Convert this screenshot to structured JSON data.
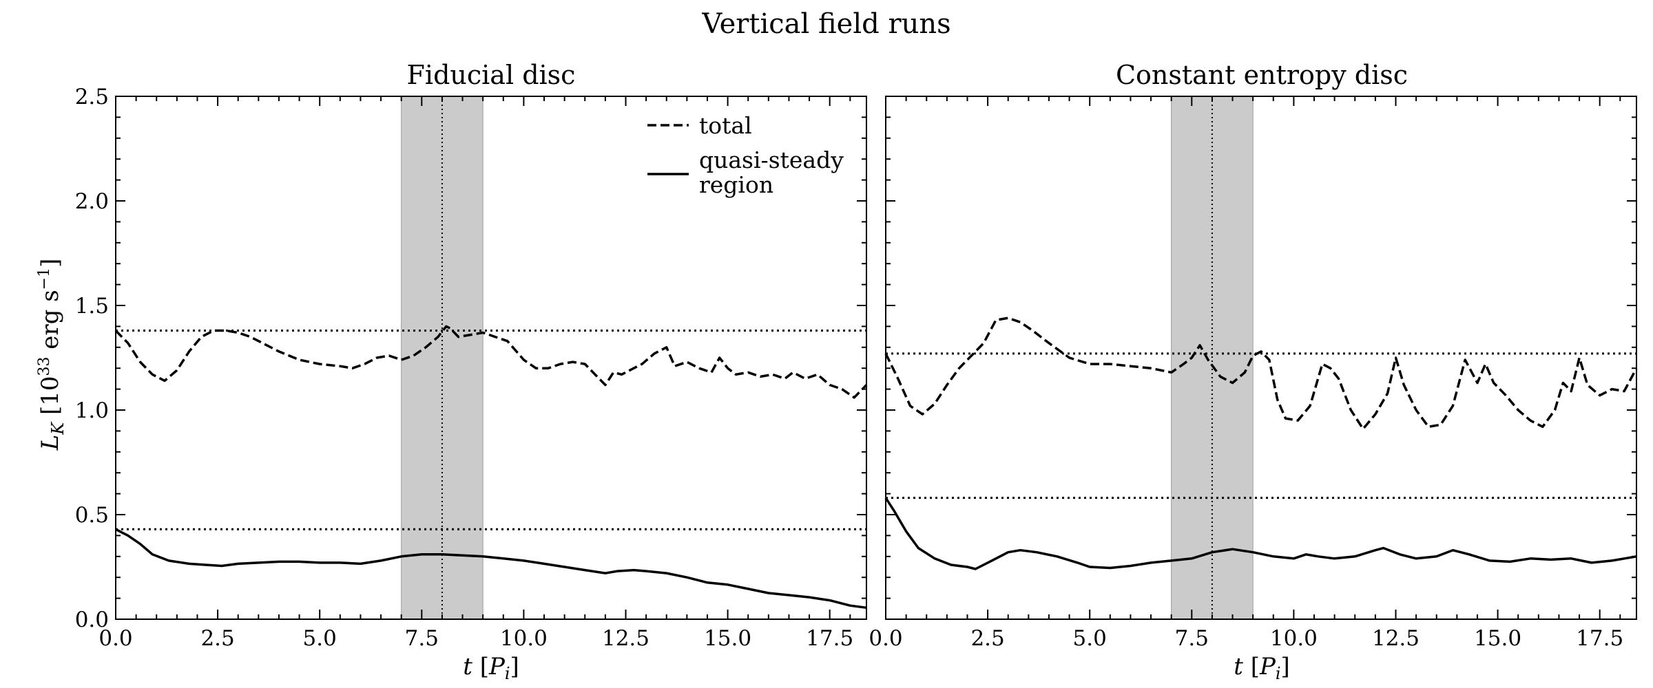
{
  "suptitle": "Vertical field runs",
  "legend": {
    "total_label": "total",
    "steady_label_line1": "quasi-steady",
    "steady_label_line2": "region"
  },
  "xlabel": {
    "main": "t",
    "open": "[",
    "var": "P",
    "sub": "i",
    "close": "]"
  },
  "ylabel": {
    "var": "L",
    "sub": "K",
    "pre": " [10",
    "exp1": "33",
    "mid": " erg s",
    "exp2": "−1",
    "post": "]"
  },
  "chart_data": [
    {
      "type": "line",
      "title": "Fiducial disc",
      "xlim": [
        0,
        18.4
      ],
      "ylim": [
        0,
        2.5
      ],
      "xticks": [
        0.0,
        2.5,
        5.0,
        7.5,
        10.0,
        12.5,
        15.0,
        17.5
      ],
      "xtick_labels": [
        "0.0",
        "2.5",
        "5.0",
        "7.5",
        "10.0",
        "12.5",
        "15.0",
        "17.5"
      ],
      "yticks": [
        0.0,
        0.5,
        1.0,
        1.5,
        2.0,
        2.5
      ],
      "ytick_labels": [
        "0.0",
        "0.5",
        "1.0",
        "1.5",
        "2.0",
        "2.5"
      ],
      "shaded_span": [
        7.0,
        9.0
      ],
      "vline": 8.0,
      "hlines": [
        1.38,
        0.43
      ],
      "series": [
        {
          "name": "total",
          "style": "dashed",
          "x": [
            0.0,
            0.3,
            0.6,
            0.9,
            1.2,
            1.5,
            1.8,
            2.1,
            2.4,
            2.7,
            3.0,
            3.3,
            3.6,
            4.0,
            4.5,
            5.0,
            5.5,
            5.8,
            6.1,
            6.4,
            6.7,
            7.0,
            7.3,
            7.6,
            7.9,
            8.1,
            8.2,
            8.4,
            8.7,
            9.0,
            9.3,
            9.6,
            10.0,
            10.3,
            10.6,
            10.9,
            11.2,
            11.5,
            11.8,
            12.0,
            12.2,
            12.4,
            12.6,
            12.9,
            13.2,
            13.5,
            13.7,
            14.0,
            14.3,
            14.6,
            14.8,
            15.0,
            15.2,
            15.5,
            15.8,
            16.1,
            16.4,
            16.6,
            16.9,
            17.2,
            17.5,
            17.8,
            18.1,
            18.4
          ],
          "y": [
            1.38,
            1.32,
            1.23,
            1.17,
            1.14,
            1.19,
            1.28,
            1.35,
            1.38,
            1.38,
            1.37,
            1.35,
            1.32,
            1.28,
            1.24,
            1.22,
            1.21,
            1.2,
            1.22,
            1.25,
            1.26,
            1.24,
            1.26,
            1.3,
            1.35,
            1.4,
            1.39,
            1.35,
            1.36,
            1.37,
            1.35,
            1.33,
            1.24,
            1.2,
            1.2,
            1.22,
            1.23,
            1.22,
            1.16,
            1.12,
            1.18,
            1.17,
            1.19,
            1.22,
            1.27,
            1.3,
            1.21,
            1.23,
            1.2,
            1.18,
            1.25,
            1.2,
            1.17,
            1.18,
            1.16,
            1.17,
            1.15,
            1.18,
            1.15,
            1.17,
            1.12,
            1.1,
            1.06,
            1.12
          ]
        },
        {
          "name": "quasi-steady region",
          "style": "solid",
          "x": [
            0.0,
            0.3,
            0.6,
            0.9,
            1.3,
            1.8,
            2.2,
            2.6,
            3.0,
            3.5,
            4.0,
            4.5,
            5.0,
            5.5,
            6.0,
            6.5,
            7.0,
            7.5,
            8.0,
            8.5,
            9.0,
            9.5,
            10.0,
            10.5,
            11.0,
            11.5,
            12.0,
            12.3,
            12.7,
            13.0,
            13.5,
            14.0,
            14.5,
            15.0,
            15.5,
            16.0,
            16.5,
            17.0,
            17.5,
            18.0,
            18.4
          ],
          "y": [
            0.43,
            0.4,
            0.36,
            0.31,
            0.28,
            0.265,
            0.26,
            0.255,
            0.265,
            0.27,
            0.275,
            0.275,
            0.27,
            0.27,
            0.265,
            0.28,
            0.3,
            0.31,
            0.31,
            0.305,
            0.3,
            0.29,
            0.28,
            0.265,
            0.25,
            0.235,
            0.22,
            0.23,
            0.235,
            0.23,
            0.22,
            0.2,
            0.175,
            0.165,
            0.145,
            0.125,
            0.115,
            0.105,
            0.09,
            0.065,
            0.055
          ]
        }
      ]
    },
    {
      "type": "line",
      "title": "Constant entropy disc",
      "xlim": [
        0,
        18.4
      ],
      "ylim": [
        0,
        2.5
      ],
      "xticks": [
        0.0,
        2.5,
        5.0,
        7.5,
        10.0,
        12.5,
        15.0,
        17.5
      ],
      "xtick_labels": [
        "0.0",
        "2.5",
        "5.0",
        "7.5",
        "10.0",
        "12.5",
        "15.0",
        "17.5"
      ],
      "yticks": [
        0.0,
        0.5,
        1.0,
        1.5,
        2.0,
        2.5
      ],
      "ytick_labels": [],
      "shaded_span": [
        7.0,
        9.0
      ],
      "vline": 8.0,
      "hlines": [
        1.27,
        0.58
      ],
      "series": [
        {
          "name": "total",
          "style": "dashed",
          "x": [
            0.0,
            0.3,
            0.6,
            0.9,
            1.2,
            1.5,
            1.8,
            2.1,
            2.4,
            2.7,
            3.0,
            3.3,
            3.6,
            4.0,
            4.5,
            5.0,
            5.5,
            6.0,
            6.5,
            7.0,
            7.3,
            7.5,
            7.7,
            7.9,
            8.2,
            8.5,
            8.8,
            9.0,
            9.2,
            9.4,
            9.6,
            9.8,
            10.1,
            10.4,
            10.7,
            10.9,
            11.1,
            11.4,
            11.7,
            12.0,
            12.3,
            12.5,
            12.7,
            13.0,
            13.3,
            13.6,
            13.9,
            14.2,
            14.5,
            14.7,
            14.9,
            15.2,
            15.5,
            15.8,
            16.1,
            16.4,
            16.6,
            16.8,
            17.0,
            17.2,
            17.5,
            17.8,
            18.1,
            18.4
          ],
          "y": [
            1.27,
            1.15,
            1.02,
            0.98,
            1.03,
            1.12,
            1.2,
            1.26,
            1.32,
            1.43,
            1.44,
            1.42,
            1.38,
            1.32,
            1.25,
            1.22,
            1.22,
            1.21,
            1.2,
            1.18,
            1.22,
            1.25,
            1.31,
            1.24,
            1.16,
            1.13,
            1.18,
            1.26,
            1.28,
            1.24,
            1.05,
            0.96,
            0.95,
            1.02,
            1.22,
            1.2,
            1.15,
            1.0,
            0.91,
            0.98,
            1.08,
            1.25,
            1.12,
            1.0,
            0.92,
            0.93,
            1.02,
            1.24,
            1.13,
            1.22,
            1.13,
            1.07,
            1.0,
            0.95,
            0.92,
            1.0,
            1.13,
            1.09,
            1.25,
            1.12,
            1.07,
            1.1,
            1.09,
            1.2
          ]
        },
        {
          "name": "quasi-steady region",
          "style": "solid",
          "x": [
            0.0,
            0.2,
            0.5,
            0.8,
            1.2,
            1.6,
            2.0,
            2.2,
            2.6,
            3.0,
            3.3,
            3.7,
            4.2,
            4.7,
            5.0,
            5.5,
            6.0,
            6.5,
            7.0,
            7.5,
            8.0,
            8.5,
            9.0,
            9.5,
            10.0,
            10.3,
            10.6,
            11.0,
            11.5,
            12.0,
            12.2,
            12.6,
            13.0,
            13.5,
            13.9,
            14.3,
            14.8,
            15.3,
            15.8,
            16.3,
            16.8,
            17.3,
            17.8,
            18.4
          ],
          "y": [
            0.58,
            0.52,
            0.42,
            0.34,
            0.29,
            0.26,
            0.25,
            0.24,
            0.28,
            0.32,
            0.33,
            0.32,
            0.3,
            0.27,
            0.25,
            0.245,
            0.255,
            0.27,
            0.28,
            0.29,
            0.32,
            0.335,
            0.32,
            0.3,
            0.29,
            0.31,
            0.3,
            0.29,
            0.3,
            0.33,
            0.34,
            0.31,
            0.29,
            0.3,
            0.33,
            0.31,
            0.28,
            0.275,
            0.29,
            0.285,
            0.29,
            0.27,
            0.28,
            0.3
          ]
        }
      ]
    }
  ]
}
